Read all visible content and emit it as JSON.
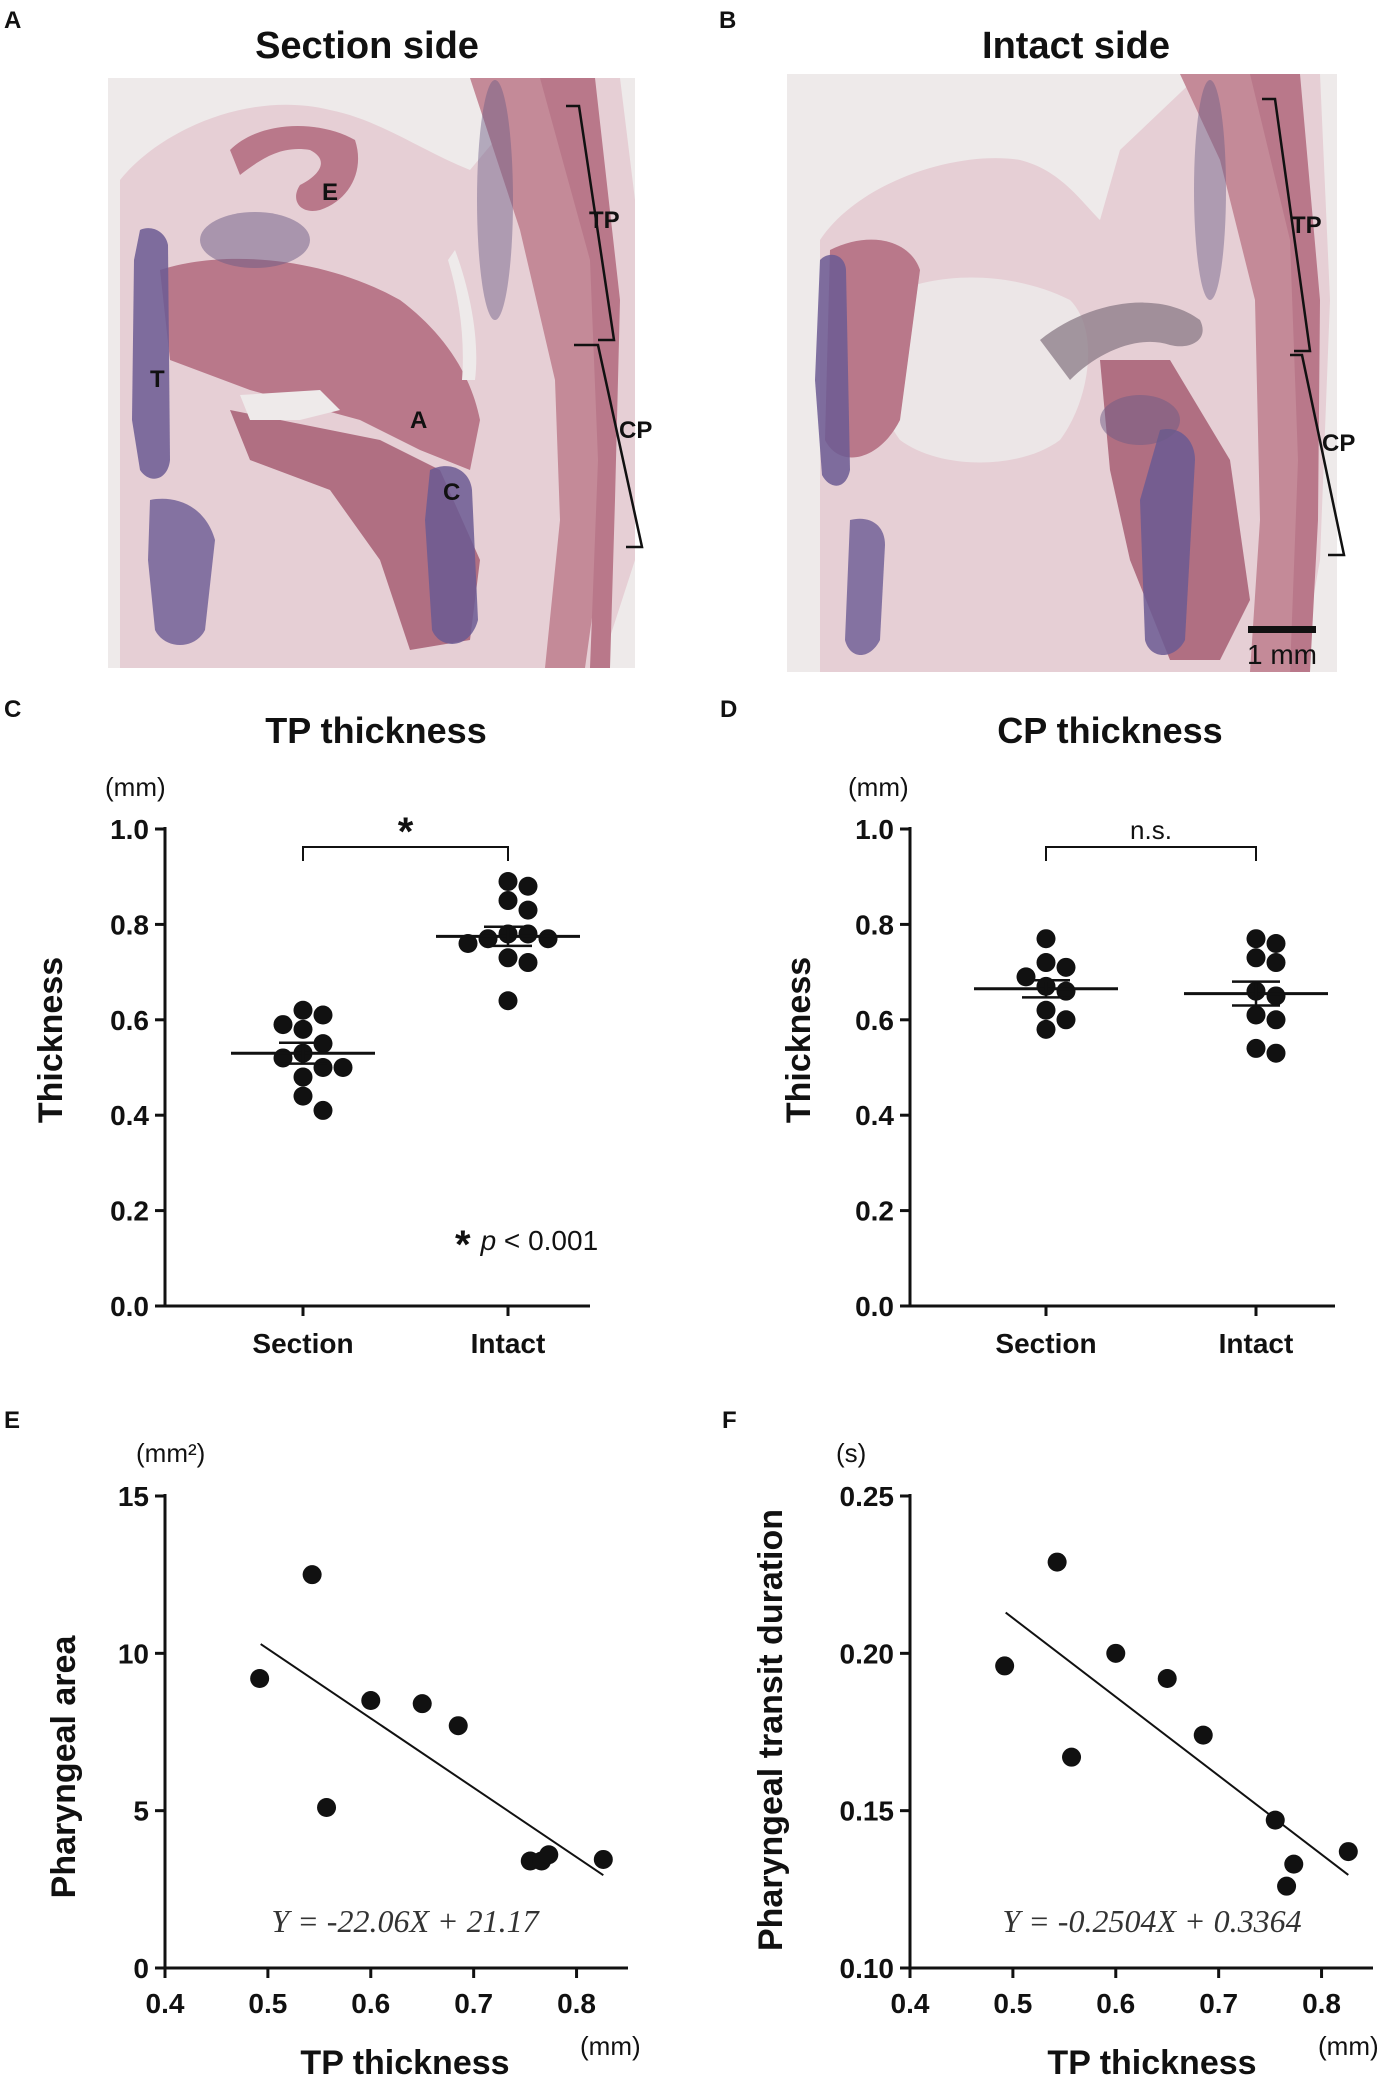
{
  "panel_letters": {
    "a": "A",
    "b": "B",
    "c": "C",
    "d": "D",
    "e": "E",
    "f": "F"
  },
  "histology": {
    "a": {
      "title": "Section side",
      "labels": {
        "E": "E",
        "T": "T",
        "A": "A",
        "C": "C",
        "TP": "TP",
        "CP": "CP"
      }
    },
    "b": {
      "title": "Intact side",
      "labels": {
        "TP": "TP",
        "CP": "CP"
      },
      "scale_bar": "1 mm"
    }
  },
  "colors": {
    "tissue_pink": "#b9788a",
    "tissue_light": "#e6cfd5",
    "cartilage": "#6b5a93",
    "background_slide": "#eeeaea",
    "marker": "#111111"
  },
  "chart_data": [
    {
      "type": "scatter",
      "id": "C",
      "title": "TP thickness",
      "unit": "(mm)",
      "ylabel": "Thickness",
      "ylim": [
        0,
        1.0
      ],
      "yticks": [
        "0.0",
        "0.2",
        "0.4",
        "0.6",
        "0.8",
        "1.0"
      ],
      "categories": [
        "Section",
        "Intact"
      ],
      "groups": [
        {
          "name": "Section",
          "values": [
            0.61,
            0.59,
            0.62,
            0.58,
            0.55,
            0.53,
            0.52,
            0.5,
            0.5,
            0.48,
            0.44,
            0.41
          ],
          "mean": 0.53,
          "sem": 0.022
        },
        {
          "name": "Intact",
          "values": [
            0.88,
            0.89,
            0.85,
            0.83,
            0.78,
            0.78,
            0.77,
            0.77,
            0.76,
            0.73,
            0.72,
            0.64
          ],
          "mean": 0.775,
          "sem": 0.02
        }
      ],
      "bracket_label": "*",
      "annotation_star": "*",
      "annotation_p": "p",
      "annotation_rest": " < 0.001"
    },
    {
      "type": "scatter",
      "id": "D",
      "title": "CP thickness",
      "unit": "(mm)",
      "ylabel": "Thickness",
      "ylim": [
        0,
        1.0
      ],
      "yticks": [
        "0.0",
        "0.2",
        "0.4",
        "0.6",
        "0.8",
        "1.0"
      ],
      "categories": [
        "Section",
        "Intact"
      ],
      "groups": [
        {
          "name": "Section",
          "values": [
            0.77,
            0.72,
            0.71,
            0.69,
            0.67,
            0.66,
            0.62,
            0.6,
            0.58
          ],
          "mean": 0.665,
          "sem": 0.018
        },
        {
          "name": "Intact",
          "values": [
            0.77,
            0.76,
            0.73,
            0.72,
            0.66,
            0.65,
            0.61,
            0.6,
            0.54,
            0.53
          ],
          "mean": 0.655,
          "sem": 0.025
        }
      ],
      "bracket_label": "n.s."
    },
    {
      "type": "scatter",
      "id": "E",
      "unit_y": "(mm²)",
      "unit_x": "(mm)",
      "ylabel": "Pharyngeal area",
      "xlabel": "TP thickness",
      "xlim": [
        0.4,
        0.85
      ],
      "ylim": [
        0,
        15
      ],
      "xticks": [
        "0.4",
        "0.5",
        "0.6",
        "0.7",
        "0.8"
      ],
      "yticks": [
        "0",
        "5",
        "10",
        "15"
      ],
      "x": [
        0.492,
        0.543,
        0.557,
        0.6,
        0.65,
        0.685,
        0.755,
        0.766,
        0.773,
        0.826
      ],
      "y": [
        9.2,
        12.5,
        5.1,
        8.5,
        8.4,
        7.7,
        3.4,
        3.4,
        3.6,
        3.45
      ],
      "fit": {
        "slope": -22.06,
        "intercept": 21.17,
        "x_from": 0.493,
        "x_to": 0.826
      },
      "equation": "Y = -22.06X + 21.17"
    },
    {
      "type": "scatter",
      "id": "F",
      "unit_y": "(s)",
      "unit_x": "(mm)",
      "ylabel": "Pharyngeal transit duration",
      "xlabel": "TP thickness",
      "xlim": [
        0.4,
        0.85
      ],
      "ylim": [
        0.1,
        0.25
      ],
      "xticks": [
        "0.4",
        "0.5",
        "0.6",
        "0.7",
        "0.8"
      ],
      "yticks": [
        "0.10",
        "0.15",
        "0.20",
        "0.25"
      ],
      "x": [
        0.492,
        0.543,
        0.557,
        0.6,
        0.65,
        0.685,
        0.755,
        0.766,
        0.773,
        0.826
      ],
      "y": [
        0.196,
        0.229,
        0.167,
        0.2,
        0.192,
        0.174,
        0.147,
        0.126,
        0.133,
        0.137
      ],
      "fit": {
        "slope": -0.2504,
        "intercept": 0.3364,
        "x_from": 0.493,
        "x_to": 0.826
      },
      "equation": "Y = -0.2504X + 0.3364"
    }
  ]
}
